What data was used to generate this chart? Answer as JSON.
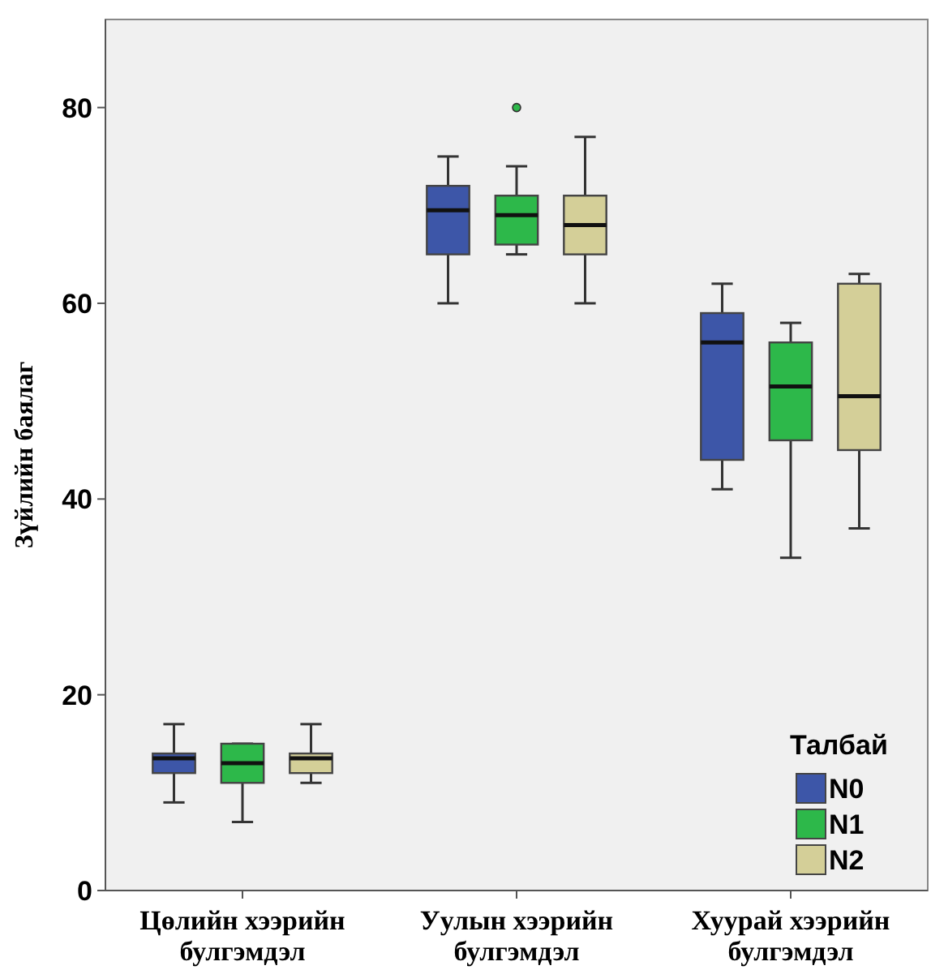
{
  "chart_data": {
    "type": "box",
    "ylabel": "Зүйлийн баялаг",
    "legend_title": "Талбай",
    "legend": "bottom right",
    "grid": false,
    "categories": [
      "Цөлийн хээрийн булгэмдэл",
      "Уулын хээрийн булгэмдэл",
      "Хуурай хээрийн булгэмдэл"
    ],
    "ylim": [
      0,
      89
    ],
    "yticks": [
      0,
      20,
      40,
      60,
      80
    ],
    "series": [
      {
        "name": "N0",
        "color": "#3d56a8",
        "boxes": [
          {
            "low": 9,
            "q1": 12,
            "median": 13.5,
            "q3": 14,
            "high": 17
          },
          {
            "low": 60,
            "q1": 65,
            "median": 69.5,
            "q3": 72,
            "high": 75
          },
          {
            "low": 41,
            "q1": 44,
            "median": 56,
            "q3": 59,
            "high": 62
          }
        ]
      },
      {
        "name": "N1",
        "color": "#2db84a",
        "boxes": [
          {
            "low": 7,
            "q1": 11,
            "median": 13,
            "q3": 15,
            "high": 15
          },
          {
            "low": 65,
            "q1": 66,
            "median": 69,
            "q3": 71,
            "high": 74,
            "outliers": [
              80
            ]
          },
          {
            "low": 34,
            "q1": 46,
            "median": 51.5,
            "q3": 56,
            "high": 58
          }
        ]
      },
      {
        "name": "N2",
        "color": "#d4cf98",
        "boxes": [
          {
            "low": 11,
            "q1": 12,
            "median": 13.5,
            "q3": 14,
            "high": 17
          },
          {
            "low": 60,
            "q1": 65,
            "median": 68,
            "q3": 71,
            "high": 77
          },
          {
            "low": 37,
            "q1": 45,
            "median": 50.5,
            "q3": 62,
            "high": 63
          }
        ]
      }
    ]
  }
}
